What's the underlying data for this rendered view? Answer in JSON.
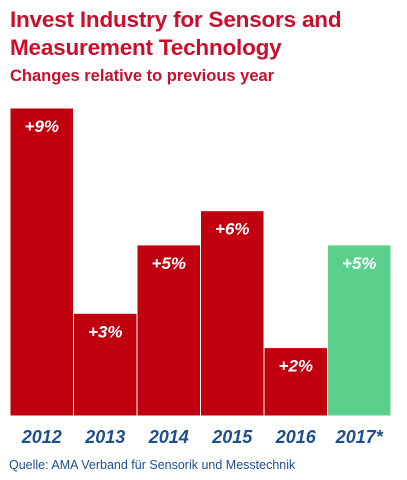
{
  "title": "Invest Industry for Sensors and Measurement Technology",
  "subtitle": "Changes relative to previous year",
  "source": "Quelle: AMA Verband für Sensorik und Messtechnik",
  "colors": {
    "title": "#c8102e",
    "bar_actual": "#c0000f",
    "bar_forecast": "#5bcf8c",
    "value_label": "#ffffff",
    "tick_label": "#1f4e8c"
  },
  "chart_data": {
    "type": "bar",
    "title": "Invest Industry for Sensors and Measurement Technology",
    "subtitle": "Changes relative to previous year",
    "categories": [
      "2012",
      "2013",
      "2014",
      "2015",
      "2016",
      "2017*"
    ],
    "values": [
      9,
      3,
      5,
      6,
      2,
      5
    ],
    "value_labels": [
      "+9%",
      "+3%",
      "+5%",
      "+6%",
      "+2%",
      "+5%"
    ],
    "unit": "%",
    "forecast": [
      false,
      false,
      false,
      false,
      false,
      true
    ],
    "ylim": [
      0,
      9
    ],
    "grid": false,
    "legend": "none"
  }
}
